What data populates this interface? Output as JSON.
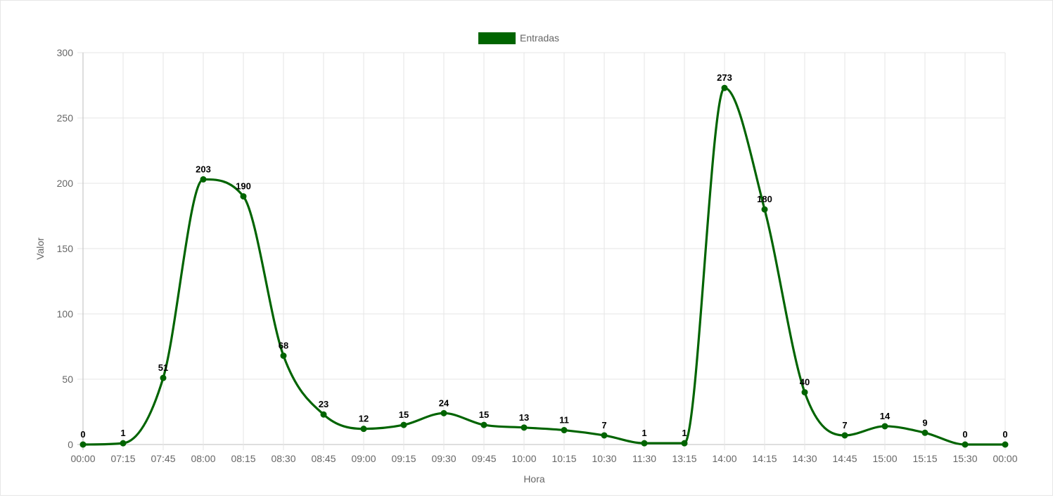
{
  "chart_data": {
    "type": "line",
    "legend": {
      "label": "Entradas",
      "position": "top"
    },
    "xlabel": "Hora",
    "ylabel": "Valor",
    "ylim": [
      0,
      300
    ],
    "yticks": [
      0,
      50,
      100,
      150,
      200,
      250,
      300
    ],
    "grid": true,
    "categories": [
      "00:00",
      "07:15",
      "07:45",
      "08:00",
      "08:15",
      "08:30",
      "08:45",
      "09:00",
      "09:15",
      "09:30",
      "09:45",
      "10:00",
      "10:15",
      "10:30",
      "11:30",
      "13:15",
      "14:00",
      "14:15",
      "14:30",
      "14:45",
      "15:00",
      "15:15",
      "15:30",
      "00:00"
    ],
    "series": [
      {
        "name": "Entradas",
        "color": "#006400",
        "values": [
          0,
          1,
          51,
          203,
          190,
          68,
          23,
          12,
          15,
          24,
          15,
          13,
          11,
          7,
          1,
          1,
          273,
          180,
          40,
          7,
          14,
          9,
          0,
          0
        ]
      }
    ]
  }
}
